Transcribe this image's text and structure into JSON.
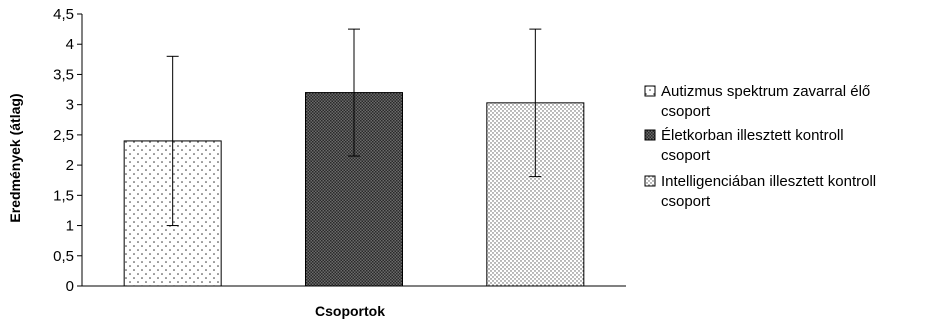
{
  "chart_data": {
    "type": "bar",
    "xlabel": "Csoportok",
    "ylabel": "Eredmények (átlag)",
    "ylim": [
      0,
      4.5
    ],
    "yticks": [
      "0",
      "0,5",
      "1",
      "1,5",
      "2",
      "2,5",
      "3",
      "3,5",
      "4",
      "4,5"
    ],
    "grid": false,
    "legend_position": "right",
    "series": [
      {
        "name_lines": [
          "Autizmus spektrum zavarral élő",
          "csoport"
        ],
        "value": 2.4,
        "error": 1.4,
        "pattern": "dots-sparse"
      },
      {
        "name_lines": [
          "Életkorban illesztett kontroll",
          "csoport"
        ],
        "value": 3.2,
        "error": 1.05,
        "pattern": "dense-dark"
      },
      {
        "name_lines": [
          "Intelligenciában illesztett kontroll",
          "csoport"
        ],
        "value": 3.03,
        "error": 1.22,
        "pattern": "dots-dense"
      }
    ]
  }
}
